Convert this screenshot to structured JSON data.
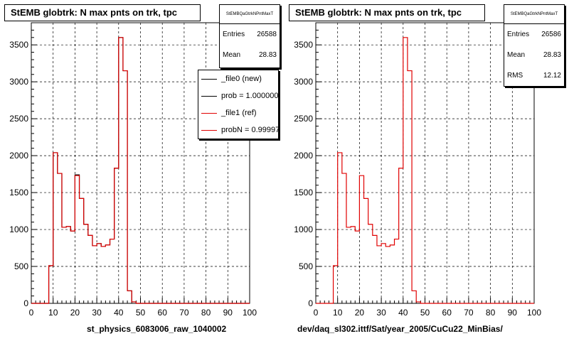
{
  "colors": {
    "new": "#000000",
    "ref": "#e00000",
    "grid": "#000000"
  },
  "chart_data": [
    {
      "type": "histogram",
      "title": "StEMB globtrk: N max pnts on trk, tpc",
      "xlabel": "st_physics_6083006_raw_1040002",
      "xlim": [
        0,
        100
      ],
      "ylim": [
        0,
        3800
      ],
      "x_ticks": [
        0,
        10,
        20,
        30,
        40,
        50,
        60,
        70,
        80,
        90,
        100
      ],
      "y_ticks": [
        0,
        500,
        1000,
        1500,
        2000,
        2500,
        3000,
        3500
      ],
      "grid": true,
      "bin_width": 2,
      "series": [
        {
          "name": "_file0 (new)",
          "color": "#000000",
          "values": [
            0,
            0,
            0,
            0,
            510,
            2040,
            1760,
            1030,
            1040,
            980,
            1740,
            1420,
            1070,
            920,
            780,
            810,
            770,
            790,
            870,
            1830,
            3600,
            3150,
            170,
            20,
            0,
            0,
            0,
            0,
            0,
            0,
            0,
            0,
            0,
            0,
            0,
            0,
            0,
            0,
            0,
            0,
            0,
            0,
            0,
            0,
            0,
            0,
            0,
            0,
            0,
            0
          ]
        },
        {
          "name": "_file1 (ref)",
          "color": "#e00000",
          "values": [
            0,
            0,
            0,
            0,
            510,
            2040,
            1760,
            1030,
            1040,
            980,
            1730,
            1420,
            1070,
            920,
            780,
            810,
            770,
            790,
            870,
            1830,
            3600,
            3150,
            170,
            20,
            0,
            0,
            0,
            0,
            0,
            0,
            0,
            0,
            0,
            0,
            0,
            0,
            0,
            0,
            0,
            0,
            0,
            0,
            0,
            0,
            0,
            0,
            0,
            0,
            0,
            0
          ]
        }
      ],
      "stats": {
        "name": "StEMBQaGtrkNPntMaxT",
        "entries_label": "Entries",
        "entries": "26588",
        "mean_label": "Mean",
        "mean": "28.83"
      },
      "legend": [
        {
          "label": "_file0 (new)",
          "color": "#000000"
        },
        {
          "label": "prob = 1.000000",
          "color": "#000000"
        },
        {
          "label": "_file1 (ref)",
          "color": "#e00000"
        },
        {
          "label": "probN = 0.999972",
          "color": "#e00000"
        }
      ]
    },
    {
      "type": "histogram",
      "title": "StEMB globtrk: N max pnts on trk, tpc",
      "xlabel": "dev/daq_sl302.ittf/Sat/year_2005/CuCu22_MinBias/",
      "xlim": [
        0,
        100
      ],
      "ylim": [
        0,
        3800
      ],
      "x_ticks": [
        0,
        10,
        20,
        30,
        40,
        50,
        60,
        70,
        80,
        90,
        100
      ],
      "y_ticks": [
        0,
        500,
        1000,
        1500,
        2000,
        2500,
        3000,
        3500
      ],
      "grid": true,
      "bin_width": 2,
      "series": [
        {
          "color": "#e00000",
          "values": [
            0,
            0,
            0,
            0,
            510,
            2040,
            1760,
            1030,
            1040,
            980,
            1730,
            1420,
            1070,
            920,
            780,
            810,
            770,
            790,
            870,
            1830,
            3600,
            3150,
            170,
            20,
            0,
            0,
            0,
            0,
            0,
            0,
            0,
            0,
            0,
            0,
            0,
            0,
            0,
            0,
            0,
            0,
            0,
            0,
            0,
            0,
            0,
            0,
            0,
            0,
            0,
            0
          ]
        }
      ],
      "stats": {
        "name": "StEMBQaGtrkNPntMaxT",
        "entries_label": "Entries",
        "entries": "26586",
        "mean_label": "Mean",
        "mean": "28.83",
        "rms_label": "RMS",
        "rms": "12.12"
      }
    }
  ]
}
